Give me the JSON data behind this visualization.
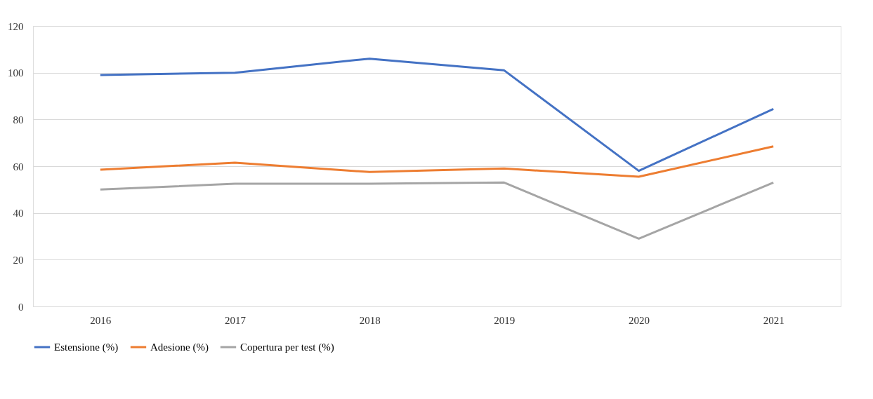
{
  "chart_data": {
    "type": "line",
    "categories": [
      "2016",
      "2017",
      "2018",
      "2019",
      "2020",
      "2021"
    ],
    "series": [
      {
        "name": "Estensione (%)",
        "color": "#4472c4",
        "values": [
          99,
          100,
          106,
          101,
          58,
          84.5
        ]
      },
      {
        "name": "Adesione (%)",
        "color": "#ed7d31",
        "values": [
          58.5,
          61.5,
          57.5,
          59,
          55.5,
          68.5
        ]
      },
      {
        "name": "Copertura per test (%)",
        "color": "#a5a5a5",
        "values": [
          50,
          52.5,
          52.5,
          53,
          29,
          53
        ]
      }
    ],
    "ylim": [
      0,
      120
    ],
    "yticks": [
      0,
      20,
      40,
      60,
      80,
      100,
      120
    ],
    "grid": "y",
    "legend": "bottom",
    "marker": "none",
    "line_style": "solid"
  }
}
